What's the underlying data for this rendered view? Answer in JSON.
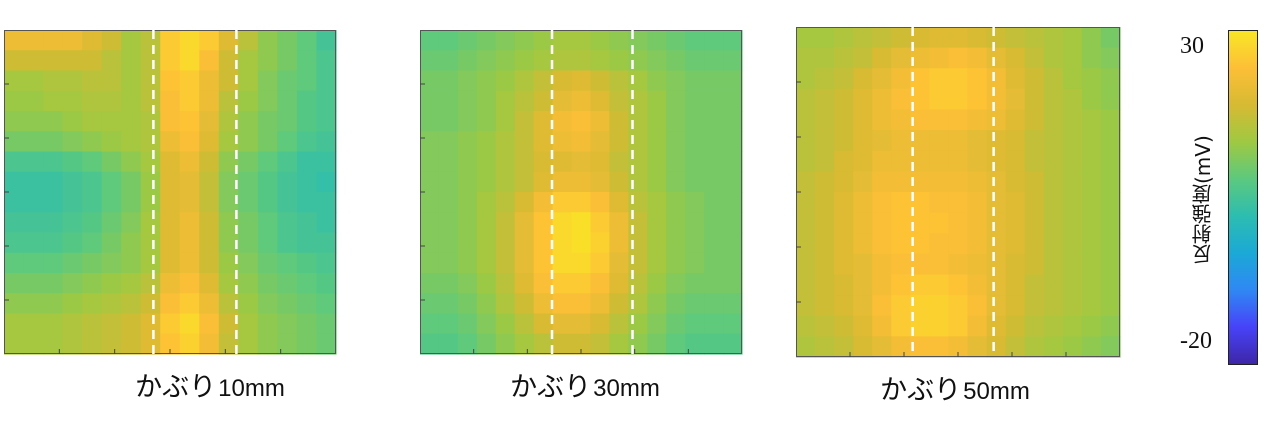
{
  "chart_data": [
    {
      "type": "heatmap",
      "cover_label": "かぶり",
      "cover_value": "10mm",
      "rows": [
        [
          22,
          22,
          22,
          22,
          20,
          18,
          14,
          16,
          26,
          28,
          26,
          20,
          16,
          12,
          10,
          8,
          5
        ],
        [
          18,
          18,
          18,
          18,
          18,
          16,
          14,
          16,
          26,
          28,
          24,
          18,
          14,
          12,
          10,
          8,
          6
        ],
        [
          14,
          14,
          15,
          15,
          16,
          16,
          14,
          16,
          25,
          26,
          22,
          18,
          14,
          11,
          9,
          8,
          6
        ],
        [
          13,
          13,
          14,
          14,
          15,
          15,
          14,
          16,
          24,
          26,
          22,
          16,
          13,
          11,
          9,
          7,
          6
        ],
        [
          12,
          12,
          12,
          13,
          14,
          14,
          14,
          15,
          24,
          25,
          21,
          15,
          12,
          10,
          9,
          7,
          6
        ],
        [
          10,
          10,
          10,
          11,
          12,
          13,
          14,
          15,
          22,
          24,
          20,
          14,
          12,
          10,
          8,
          6,
          5
        ],
        [
          6,
          6,
          6,
          7,
          8,
          10,
          12,
          14,
          20,
          22,
          18,
          12,
          10,
          8,
          6,
          4,
          4
        ],
        [
          4,
          4,
          4,
          5,
          6,
          8,
          10,
          13,
          20,
          21,
          17,
          11,
          9,
          7,
          5,
          4,
          3
        ],
        [
          4,
          4,
          4,
          5,
          6,
          8,
          10,
          13,
          20,
          21,
          17,
          11,
          9,
          7,
          5,
          4,
          4
        ],
        [
          5,
          5,
          5,
          6,
          7,
          9,
          11,
          14,
          20,
          22,
          18,
          12,
          10,
          8,
          6,
          5,
          4
        ],
        [
          6,
          6,
          6,
          7,
          8,
          10,
          12,
          14,
          20,
          22,
          18,
          12,
          10,
          8,
          6,
          5,
          5
        ],
        [
          8,
          8,
          8,
          9,
          10,
          11,
          12,
          14,
          20,
          22,
          18,
          13,
          11,
          9,
          8,
          7,
          6
        ],
        [
          10,
          10,
          10,
          11,
          12,
          13,
          14,
          16,
          22,
          24,
          20,
          14,
          12,
          10,
          9,
          8,
          7
        ],
        [
          12,
          12,
          12,
          13,
          14,
          15,
          16,
          18,
          24,
          26,
          22,
          16,
          13,
          11,
          10,
          9,
          8
        ],
        [
          14,
          14,
          14,
          15,
          16,
          17,
          18,
          20,
          26,
          28,
          24,
          18,
          14,
          12,
          11,
          10,
          9
        ],
        [
          14,
          14,
          14,
          15,
          16,
          17,
          18,
          20,
          25,
          27,
          23,
          17,
          14,
          12,
          11,
          10,
          9
        ]
      ],
      "vlines": [
        0.45,
        0.7
      ]
    },
    {
      "type": "heatmap",
      "cover_label": "かぶり",
      "cover_value": "30mm",
      "rows": [
        [
          8,
          8,
          9,
          10,
          11,
          12,
          13,
          14,
          14,
          13,
          12,
          11,
          10,
          9,
          8,
          8,
          8
        ],
        [
          9,
          9,
          10,
          11,
          12,
          13,
          14,
          15,
          15,
          14,
          13,
          12,
          11,
          10,
          9,
          9,
          9
        ],
        [
          10,
          10,
          11,
          12,
          13,
          15,
          17,
          19,
          20,
          18,
          16,
          14,
          12,
          11,
          10,
          10,
          10
        ],
        [
          10,
          10,
          11,
          12,
          14,
          16,
          18,
          21,
          22,
          20,
          17,
          15,
          13,
          11,
          10,
          10,
          10
        ],
        [
          10,
          10,
          11,
          12,
          14,
          17,
          20,
          23,
          24,
          22,
          18,
          15,
          13,
          11,
          10,
          10,
          10
        ],
        [
          11,
          11,
          12,
          13,
          15,
          17,
          20,
          22,
          23,
          21,
          18,
          15,
          13,
          11,
          10,
          10,
          10
        ],
        [
          11,
          11,
          12,
          13,
          15,
          17,
          19,
          20,
          21,
          20,
          17,
          15,
          13,
          11,
          10,
          10,
          10
        ],
        [
          11,
          11,
          12,
          13,
          15,
          17,
          20,
          22,
          22,
          21,
          18,
          15,
          13,
          11,
          10,
          10,
          10
        ],
        [
          11,
          11,
          12,
          14,
          16,
          19,
          23,
          26,
          26,
          24,
          20,
          16,
          14,
          12,
          11,
          10,
          10
        ],
        [
          11,
          11,
          12,
          14,
          17,
          21,
          25,
          28,
          29,
          26,
          22,
          17,
          14,
          12,
          11,
          10,
          10
        ],
        [
          11,
          11,
          12,
          14,
          17,
          21,
          25,
          28,
          29,
          27,
          22,
          17,
          14,
          12,
          11,
          10,
          10
        ],
        [
          11,
          11,
          12,
          14,
          17,
          21,
          25,
          28,
          28,
          26,
          21,
          17,
          14,
          12,
          11,
          10,
          10
        ],
        [
          10,
          10,
          11,
          13,
          16,
          20,
          24,
          26,
          26,
          24,
          20,
          16,
          13,
          11,
          10,
          10,
          10
        ],
        [
          9,
          9,
          10,
          12,
          15,
          18,
          22,
          24,
          24,
          22,
          18,
          15,
          12,
          10,
          9,
          9,
          9
        ],
        [
          8,
          8,
          9,
          11,
          13,
          16,
          19,
          21,
          21,
          19,
          16,
          13,
          11,
          9,
          8,
          8,
          8
        ],
        [
          7,
          7,
          8,
          10,
          12,
          14,
          16,
          18,
          18,
          17,
          14,
          12,
          10,
          8,
          7,
          7,
          7
        ]
      ],
      "vlines": [
        0.41,
        0.66
      ]
    },
    {
      "type": "heatmap",
      "cover_label": "かぶり",
      "cover_value": "50mm",
      "rows": [
        [
          14,
          14,
          15,
          16,
          17,
          18,
          19,
          20,
          20,
          19,
          18,
          17,
          16,
          15,
          14,
          12,
          10
        ],
        [
          15,
          15,
          16,
          17,
          19,
          21,
          22,
          23,
          24,
          23,
          21,
          19,
          17,
          15,
          14,
          12,
          11
        ],
        [
          15,
          16,
          17,
          19,
          21,
          23,
          25,
          26,
          26,
          25,
          23,
          20,
          18,
          16,
          14,
          13,
          12
        ],
        [
          16,
          17,
          18,
          20,
          22,
          24,
          25,
          26,
          26,
          25,
          23,
          21,
          18,
          16,
          15,
          13,
          12
        ],
        [
          16,
          17,
          18,
          20,
          22,
          23,
          24,
          24,
          24,
          23,
          22,
          20,
          18,
          16,
          15,
          14,
          13
        ],
        [
          16,
          17,
          18,
          20,
          21,
          22,
          22,
          22,
          22,
          21,
          20,
          19,
          17,
          16,
          15,
          14,
          13
        ],
        [
          16,
          17,
          19,
          20,
          22,
          22,
          22,
          22,
          22,
          21,
          20,
          19,
          17,
          16,
          15,
          14,
          13
        ],
        [
          17,
          18,
          19,
          21,
          23,
          23,
          23,
          23,
          23,
          22,
          21,
          19,
          18,
          16,
          15,
          14,
          13
        ],
        [
          17,
          18,
          20,
          22,
          24,
          25,
          25,
          24,
          24,
          23,
          21,
          20,
          18,
          16,
          15,
          14,
          13
        ],
        [
          17,
          18,
          20,
          22,
          24,
          25,
          25,
          25,
          24,
          23,
          21,
          20,
          18,
          16,
          15,
          14,
          13
        ],
        [
          17,
          18,
          20,
          22,
          24,
          25,
          25,
          24,
          24,
          23,
          21,
          20,
          18,
          16,
          15,
          14,
          13
        ],
        [
          17,
          18,
          20,
          21,
          23,
          24,
          24,
          24,
          23,
          22,
          21,
          19,
          18,
          16,
          15,
          14,
          13
        ],
        [
          17,
          18,
          19,
          21,
          23,
          25,
          26,
          26,
          25,
          23,
          21,
          19,
          17,
          16,
          15,
          14,
          13
        ],
        [
          17,
          18,
          19,
          21,
          24,
          26,
          27,
          27,
          26,
          24,
          21,
          19,
          17,
          16,
          15,
          14,
          13
        ],
        [
          16,
          17,
          18,
          20,
          23,
          26,
          27,
          27,
          26,
          23,
          20,
          18,
          16,
          15,
          14,
          13,
          12
        ],
        [
          15,
          16,
          17,
          19,
          21,
          23,
          24,
          24,
          23,
          21,
          19,
          17,
          15,
          14,
          13,
          12,
          11
        ]
      ],
      "vlines": [
        0.36,
        0.61
      ]
    }
  ],
  "colorbar": {
    "max_label": "30",
    "min_label": "-20",
    "vmax": 30,
    "vmin": -20,
    "label": "反射強度(mV)",
    "colormap": [
      "#3e26a8",
      "#4743f8",
      "#2f88f4",
      "#1ba9d6",
      "#2dbdb0",
      "#5cc97e",
      "#9fc942",
      "#d7ba33",
      "#fdbf37",
      "#f9e626"
    ]
  }
}
